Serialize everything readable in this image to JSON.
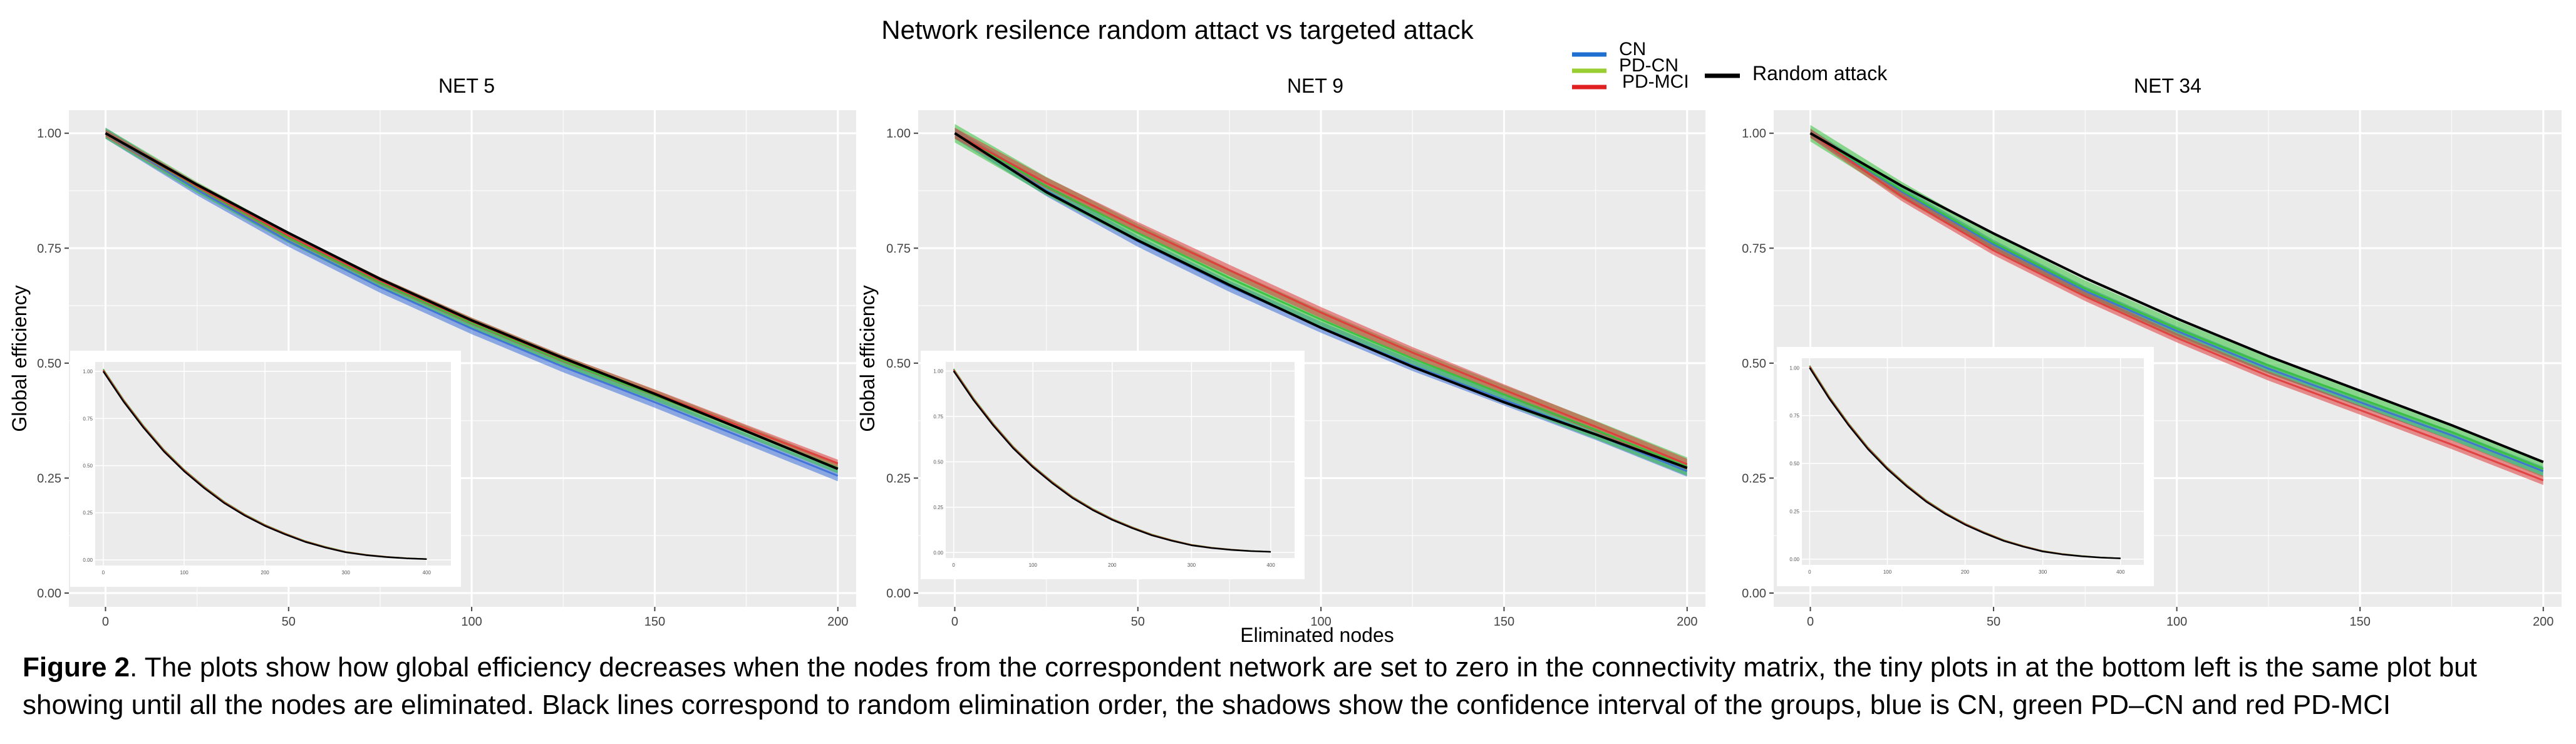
{
  "figure": {
    "title": "Network resilence random attact vs targeted attack",
    "legend": {
      "entries": [
        {
          "label": "CN",
          "color": "#1f6fd0"
        },
        {
          "label": "PD-CN",
          "color": "#9acd32"
        },
        {
          "label": "PD-MCI",
          "color": "#e02020"
        },
        {
          "label": "Random attack",
          "color": "#000000"
        }
      ]
    },
    "xlabel_shared": "Eliminated nodes",
    "caption_label": "Figure 2",
    "caption_text": ". The plots show how global efficiency decreases when the nodes from the correspondent network are set to zero in the connectivity matrix, the tiny plots in at the bottom left is the same plot but showing until all the nodes are eliminated. Black lines correspond to random elimination order, the shadows show the confidence interval of the groups, blue is CN, green PD–CN and red PD-MCI"
  },
  "colors": {
    "panel_bg": "#ebebeb",
    "grid": "#ffffff",
    "cn": "#3d6fd8",
    "pdcn": "#35c23a",
    "pdmci": "#e03a3a",
    "random": "#000000"
  },
  "chart_data": [
    {
      "type": "line",
      "title": "NET 5",
      "xlabel": "",
      "ylabel": "Global efficiency",
      "xlim": [
        -10,
        205
      ],
      "ylim": [
        -0.03,
        1.05
      ],
      "xticks": [
        0,
        50,
        100,
        150,
        200
      ],
      "yticks": [
        0.0,
        0.25,
        0.5,
        0.75,
        1.0
      ],
      "xtick_labels": [
        "0",
        "50",
        "100",
        "150",
        "200"
      ],
      "ytick_labels": [
        "0.00",
        "0.25",
        "0.50",
        "0.75",
        "1.00"
      ],
      "grid": true,
      "x": [
        0,
        25,
        50,
        75,
        100,
        125,
        150,
        175,
        200
      ],
      "series": [
        {
          "name": "CN",
          "values": [
            1.0,
            0.877,
            0.765,
            0.665,
            0.575,
            0.492,
            0.415,
            0.335,
            0.255
          ],
          "band": 0.012
        },
        {
          "name": "PD-CN",
          "values": [
            1.0,
            0.882,
            0.773,
            0.675,
            0.587,
            0.505,
            0.43,
            0.352,
            0.272
          ],
          "band": 0.012
        },
        {
          "name": "PD-MCI",
          "values": [
            1.0,
            0.884,
            0.777,
            0.679,
            0.591,
            0.509,
            0.435,
            0.358,
            0.282
          ],
          "band": 0.008
        },
        {
          "name": "Random attack",
          "values": [
            1.0,
            0.888,
            0.783,
            0.683,
            0.593,
            0.511,
            0.433,
            0.352,
            0.27
          ],
          "band": 0
        }
      ],
      "inset": {
        "xlim": [
          -10,
          430
        ],
        "ylim": [
          -0.03,
          1.05
        ],
        "xticks": [
          0,
          100,
          200,
          300,
          400
        ],
        "yticks": [
          0.0,
          0.25,
          0.5,
          0.75,
          1.0
        ],
        "x": [
          0,
          25,
          50,
          75,
          100,
          125,
          150,
          175,
          200,
          225,
          250,
          275,
          300,
          325,
          350,
          375,
          400
        ],
        "values": [
          1.0,
          0.84,
          0.7,
          0.575,
          0.47,
          0.38,
          0.3,
          0.235,
          0.18,
          0.135,
          0.095,
          0.065,
          0.04,
          0.025,
          0.015,
          0.008,
          0.004
        ]
      }
    },
    {
      "type": "line",
      "title": "NET 9",
      "xlabel": "Eliminated nodes",
      "ylabel": "Global efficiency",
      "xlim": [
        -10,
        205
      ],
      "ylim": [
        -0.03,
        1.05
      ],
      "xticks": [
        0,
        50,
        100,
        150,
        200
      ],
      "yticks": [
        0.0,
        0.25,
        0.5,
        0.75,
        1.0
      ],
      "xtick_labels": [
        "0",
        "50",
        "100",
        "150",
        "200"
      ],
      "ytick_labels": [
        "0.00",
        "0.25",
        "0.50",
        "0.75",
        "1.00"
      ],
      "grid": true,
      "x": [
        0,
        25,
        50,
        75,
        100,
        125,
        150,
        175,
        200
      ],
      "series": [
        {
          "name": "CN",
          "values": [
            1.0,
            0.875,
            0.765,
            0.667,
            0.578,
            0.495,
            0.42,
            0.345,
            0.265
          ],
          "band": 0.012
        },
        {
          "name": "PD-CN",
          "values": [
            1.0,
            0.885,
            0.783,
            0.685,
            0.595,
            0.51,
            0.432,
            0.355,
            0.275
          ],
          "band": 0.02
        },
        {
          "name": "PD-MCI",
          "values": [
            1.0,
            0.892,
            0.795,
            0.702,
            0.61,
            0.523,
            0.442,
            0.362,
            0.28
          ],
          "band": 0.012
        },
        {
          "name": "Random attack",
          "values": [
            1.0,
            0.872,
            0.767,
            0.67,
            0.577,
            0.492,
            0.415,
            0.345,
            0.272
          ],
          "band": 0
        }
      ],
      "inset": {
        "xlim": [
          -10,
          430
        ],
        "ylim": [
          -0.03,
          1.05
        ],
        "xticks": [
          0,
          100,
          200,
          300,
          400
        ],
        "yticks": [
          0.0,
          0.25,
          0.5,
          0.75,
          1.0
        ],
        "x": [
          0,
          25,
          50,
          75,
          100,
          125,
          150,
          175,
          200,
          225,
          250,
          275,
          300,
          325,
          350,
          375,
          400
        ],
        "values": [
          1.0,
          0.84,
          0.7,
          0.575,
          0.47,
          0.38,
          0.3,
          0.235,
          0.18,
          0.135,
          0.095,
          0.065,
          0.04,
          0.025,
          0.015,
          0.008,
          0.004
        ]
      }
    },
    {
      "type": "line",
      "title": "NET 34",
      "xlabel": "",
      "ylabel": "",
      "xlim": [
        -10,
        205
      ],
      "ylim": [
        -0.03,
        1.05
      ],
      "xticks": [
        0,
        50,
        100,
        150,
        200
      ],
      "yticks": [
        0.0,
        0.25,
        0.5,
        0.75,
        1.0
      ],
      "xtick_labels": [
        "0",
        "50",
        "100",
        "150",
        "200"
      ],
      "ytick_labels": [
        "0.00",
        "0.25",
        "0.50",
        "0.75",
        "1.00"
      ],
      "grid": true,
      "x": [
        0,
        25,
        50,
        75,
        100,
        125,
        150,
        175,
        200
      ],
      "series": [
        {
          "name": "CN",
          "values": [
            1.0,
            0.873,
            0.758,
            0.657,
            0.57,
            0.488,
            0.415,
            0.343,
            0.265
          ],
          "band": 0.01
        },
        {
          "name": "PD-CN",
          "values": [
            1.0,
            0.876,
            0.762,
            0.662,
            0.575,
            0.495,
            0.423,
            0.35,
            0.27
          ],
          "band": 0.018
        },
        {
          "name": "PD-MCI",
          "values": [
            1.0,
            0.862,
            0.745,
            0.645,
            0.555,
            0.472,
            0.398,
            0.323,
            0.245
          ],
          "band": 0.01
        },
        {
          "name": "Random attack",
          "values": [
            1.0,
            0.885,
            0.782,
            0.685,
            0.597,
            0.515,
            0.44,
            0.365,
            0.285
          ],
          "band": 0
        }
      ],
      "inset": {
        "xlim": [
          -10,
          430
        ],
        "ylim": [
          -0.03,
          1.05
        ],
        "xticks": [
          0,
          100,
          200,
          300,
          400
        ],
        "yticks": [
          0.0,
          0.25,
          0.5,
          0.75,
          1.0
        ],
        "x": [
          0,
          25,
          50,
          75,
          100,
          125,
          150,
          175,
          200,
          225,
          250,
          275,
          300,
          325,
          350,
          375,
          400
        ],
        "values": [
          1.0,
          0.84,
          0.7,
          0.575,
          0.47,
          0.38,
          0.3,
          0.235,
          0.18,
          0.135,
          0.095,
          0.065,
          0.04,
          0.025,
          0.015,
          0.008,
          0.004
        ]
      }
    }
  ]
}
